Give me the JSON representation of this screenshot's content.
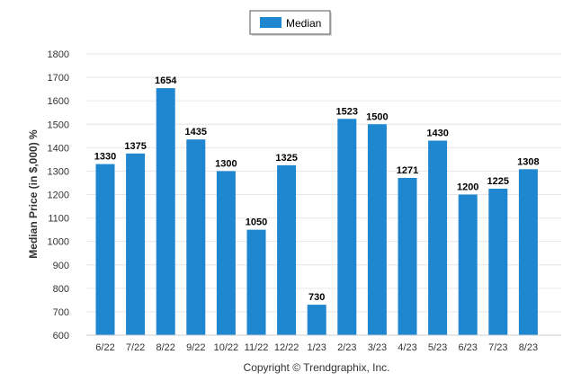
{
  "chart_data": {
    "type": "bar",
    "categories": [
      "6/22",
      "7/22",
      "8/22",
      "9/22",
      "10/22",
      "11/22",
      "12/22",
      "1/23",
      "2/23",
      "3/23",
      "4/23",
      "5/23",
      "6/23",
      "7/23",
      "8/23"
    ],
    "series": [
      {
        "name": "Median",
        "values": [
          1330,
          1375,
          1654,
          1435,
          1300,
          1050,
          1325,
          730,
          1523,
          1500,
          1271,
          1430,
          1200,
          1225,
          1308
        ]
      }
    ],
    "title": "",
    "xlabel": "",
    "ylabel": "Median Price (in $,000) %",
    "ylim": [
      600,
      1800
    ],
    "yticks": [
      600,
      700,
      800,
      900,
      1000,
      1100,
      1200,
      1300,
      1400,
      1500,
      1600,
      1700,
      1800
    ],
    "grid": true,
    "legend_position": "top-center",
    "bar_color": "#1f86d0",
    "data_labels": true
  },
  "footer": {
    "credit": "Copyright © Trendgraphix, Inc."
  }
}
